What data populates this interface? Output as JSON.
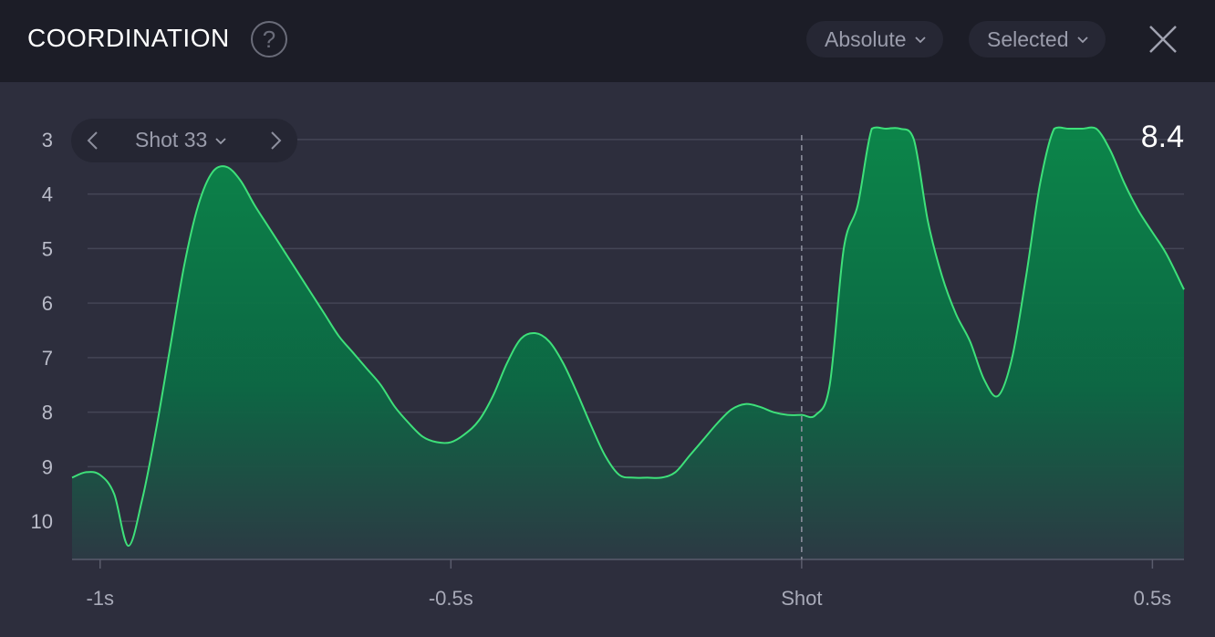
{
  "header": {
    "title": "COORDINATION",
    "help_glyph": "?",
    "mode_dropdown": "Absolute",
    "filter_dropdown": "Selected"
  },
  "shot_nav": {
    "label": "Shot 33"
  },
  "readout": "8.4",
  "colors": {
    "line": "#3ee07a",
    "fill_top": "#0a8a4a",
    "fill_bottom": "#2c3a44",
    "grid": "#444656",
    "header_bg": "#1c1d27",
    "panel_bg": "#2d2e3d"
  },
  "icons": [
    "help-icon",
    "chevron-down-icon",
    "close-icon",
    "chevron-left-icon",
    "chevron-right-icon"
  ],
  "chart_data": {
    "type": "area",
    "title": "",
    "xlabel": "",
    "ylabel": "",
    "y_inverted": true,
    "ylim": [
      2.75,
      10.7
    ],
    "xlim": [
      -1.04,
      0.545
    ],
    "x_ticks": [
      {
        "value": -1.0,
        "label": "-1s"
      },
      {
        "value": -0.5,
        "label": "-0.5s"
      },
      {
        "value": 0.0,
        "label": "Shot"
      },
      {
        "value": 0.5,
        "label": "0.5s"
      }
    ],
    "y_ticks": [
      3,
      4,
      5,
      6,
      7,
      8,
      9,
      10
    ],
    "marker": {
      "x": 0.0,
      "label": "Shot"
    },
    "grid": true,
    "series": [
      {
        "x": [
          -1.04,
          -1.02,
          -1.0,
          -0.98,
          -0.96,
          -0.94,
          -0.92,
          -0.9,
          -0.88,
          -0.86,
          -0.84,
          -0.82,
          -0.8,
          -0.78,
          -0.76,
          -0.74,
          -0.72,
          -0.7,
          -0.68,
          -0.66,
          -0.64,
          -0.62,
          -0.6,
          -0.58,
          -0.56,
          -0.54,
          -0.52,
          -0.5,
          -0.48,
          -0.46,
          -0.44,
          -0.42,
          -0.4,
          -0.38,
          -0.36,
          -0.34,
          -0.32,
          -0.3,
          -0.28,
          -0.26,
          -0.24,
          -0.22,
          -0.2,
          -0.18,
          -0.16,
          -0.14,
          -0.12,
          -0.1,
          -0.08,
          -0.06,
          -0.04,
          -0.02,
          0.0,
          0.02,
          0.04,
          0.06,
          0.08,
          0.1,
          0.12,
          0.14,
          0.16,
          0.18,
          0.2,
          0.22,
          0.24,
          0.26,
          0.28,
          0.3,
          0.32,
          0.34,
          0.36,
          0.38,
          0.4,
          0.42,
          0.44,
          0.46,
          0.48,
          0.5,
          0.52,
          0.545
        ],
        "y": [
          9.2,
          9.1,
          9.15,
          9.5,
          10.45,
          9.6,
          8.3,
          6.8,
          5.3,
          4.2,
          3.6,
          3.5,
          3.75,
          4.2,
          4.6,
          5.0,
          5.4,
          5.8,
          6.2,
          6.6,
          6.9,
          7.2,
          7.5,
          7.9,
          8.2,
          8.45,
          8.55,
          8.55,
          8.4,
          8.15,
          7.7,
          7.1,
          6.65,
          6.55,
          6.7,
          7.1,
          7.65,
          8.25,
          8.8,
          9.15,
          9.2,
          9.2,
          9.2,
          9.1,
          8.8,
          8.5,
          8.2,
          7.95,
          7.85,
          7.9,
          8.0,
          8.05,
          8.05,
          8.05,
          7.5,
          5.0,
          4.2,
          2.8,
          2.8,
          2.8,
          3.0,
          4.5,
          5.5,
          6.2,
          6.7,
          7.4,
          7.7,
          7.0,
          5.5,
          3.8,
          2.8,
          2.8,
          2.8,
          2.8,
          3.2,
          3.8,
          4.3,
          4.7,
          5.1,
          5.75
        ]
      }
    ]
  }
}
